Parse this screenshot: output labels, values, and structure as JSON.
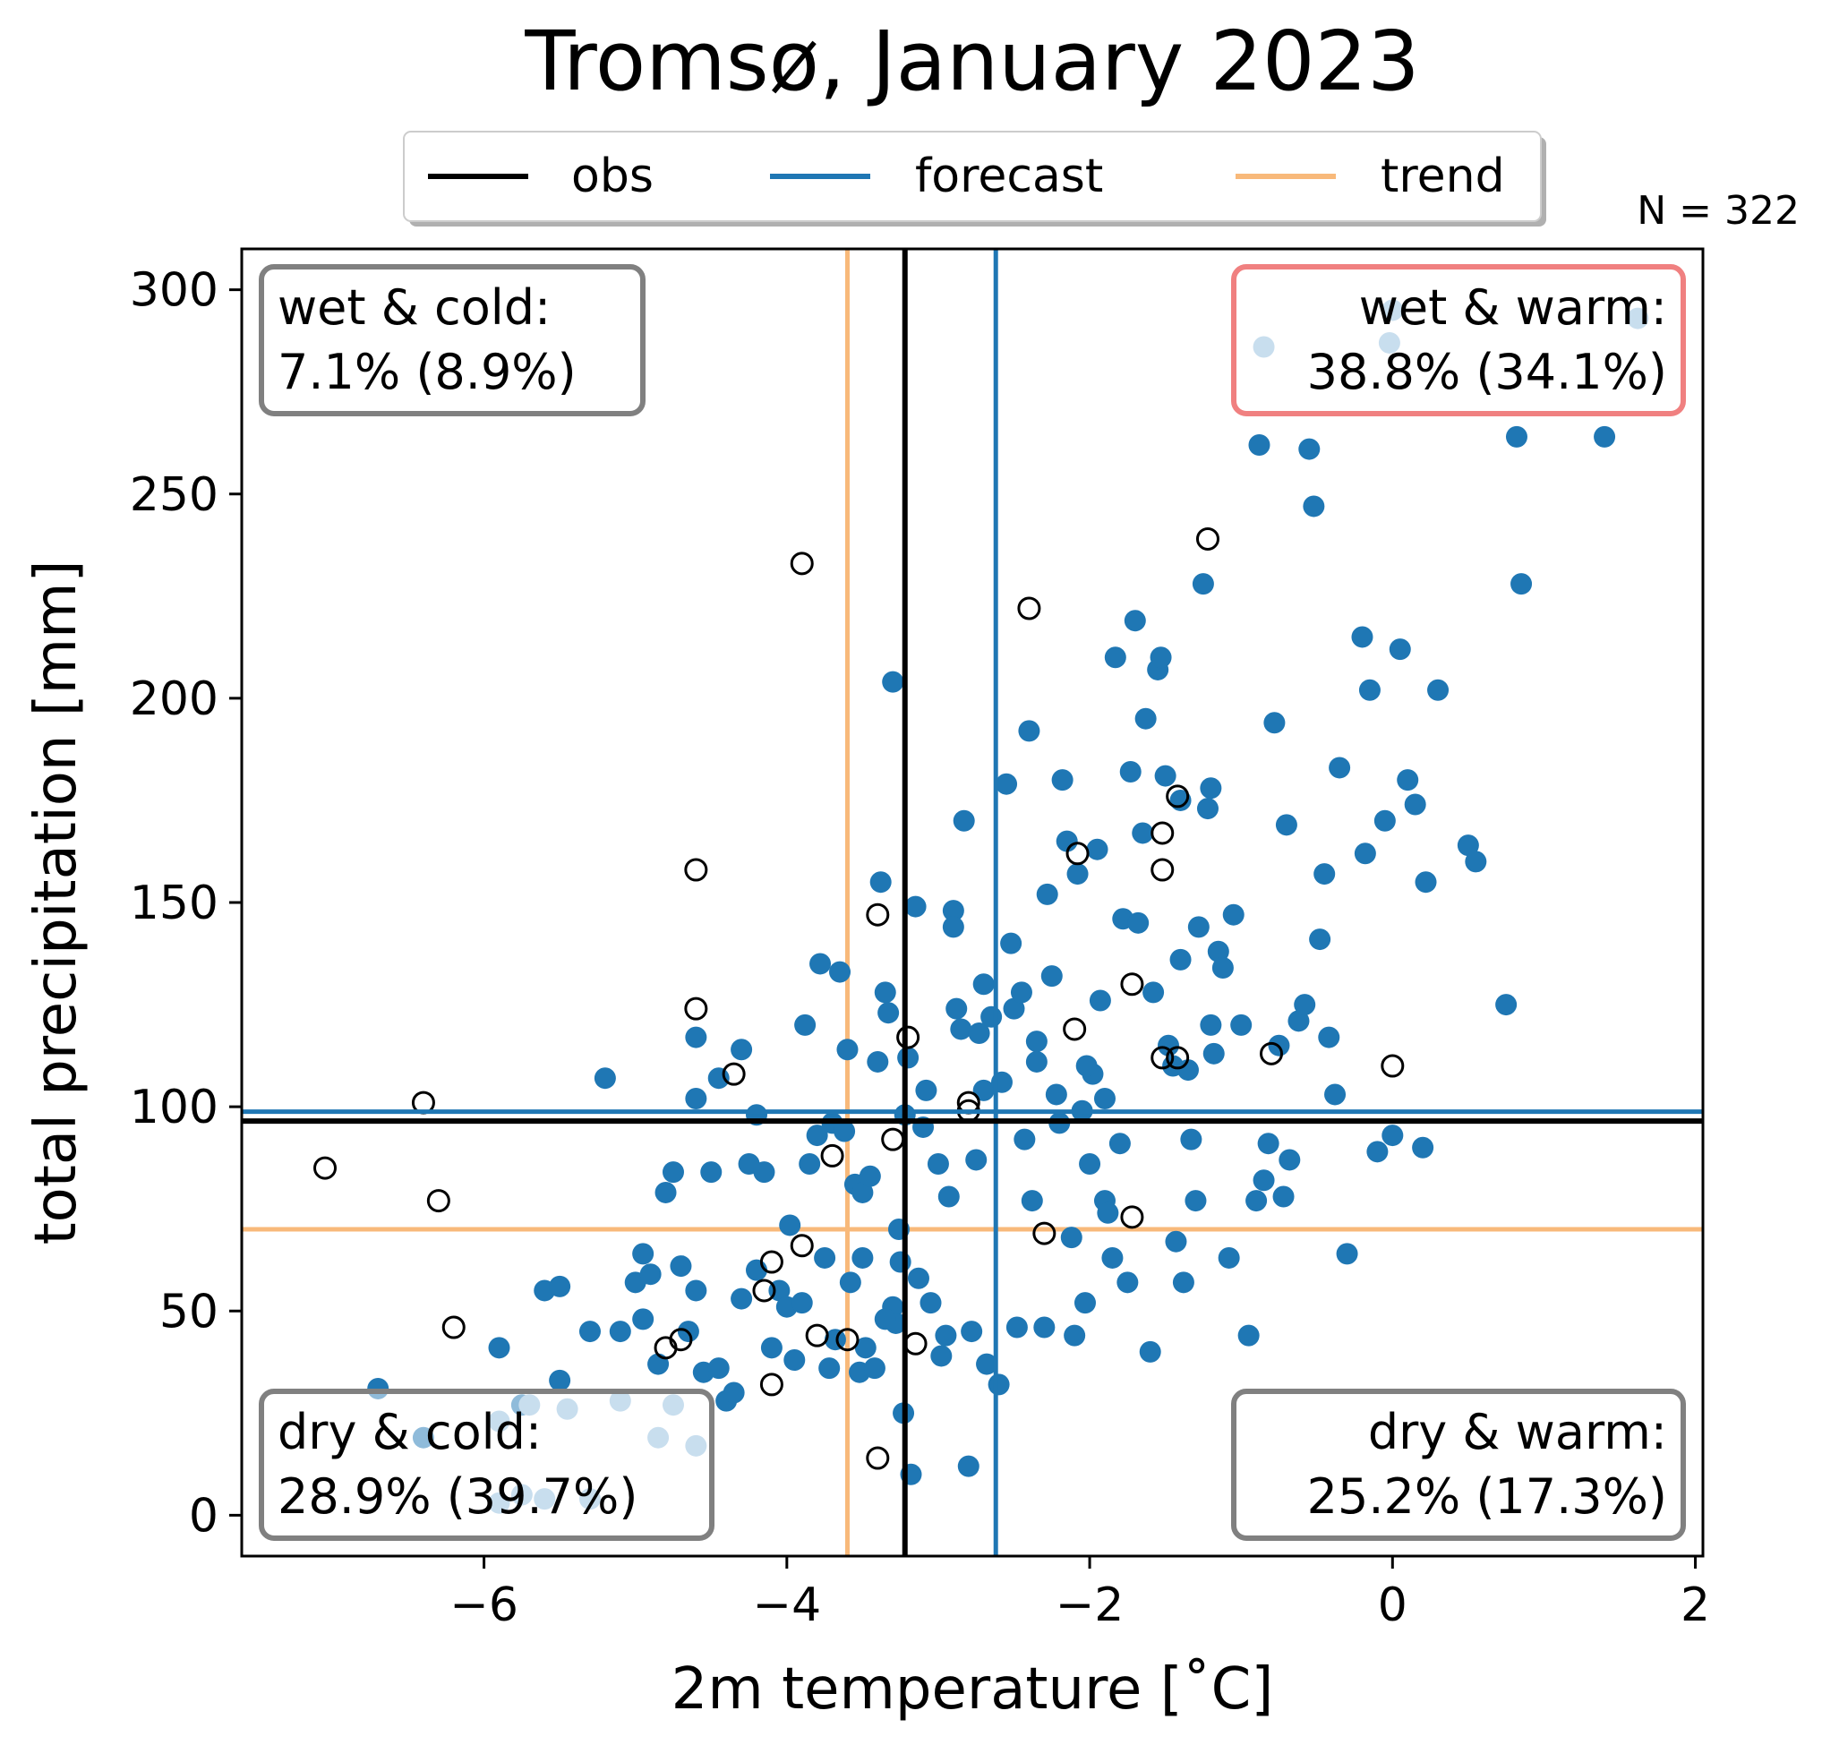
{
  "chart_data": {
    "type": "scatter",
    "title": "Tromsø, January 2023",
    "xlabel": "2m temperature [˚C]",
    "ylabel": "total precipitation [mm]",
    "xlim": [
      -7.6,
      2.05
    ],
    "ylim": [
      -10,
      310
    ],
    "xticks": [
      -6,
      -4,
      -2,
      0,
      2
    ],
    "xtick_labels": [
      "−6",
      "−4",
      "−2",
      "0",
      "2"
    ],
    "yticks": [
      0,
      50,
      100,
      150,
      200,
      250,
      300
    ],
    "ytick_labels": [
      "0",
      "50",
      "100",
      "150",
      "200",
      "250",
      "300"
    ],
    "grid": false,
    "n_label": "N = 322",
    "legend": {
      "placement": "top-center",
      "entries": [
        {
          "label": "obs",
          "color": "#000000"
        },
        {
          "label": "forecast",
          "color": "#1f77b4"
        },
        {
          "label": "trend",
          "color": "#f8b97a"
        }
      ]
    },
    "reference_lines": {
      "obs": {
        "x": -3.22,
        "y": 96.5,
        "color": "#000000"
      },
      "forecast": {
        "x": -2.62,
        "y": 98.8,
        "color": "#1f77b4"
      },
      "trend": {
        "x": -3.6,
        "y": 70,
        "color": "#f8b97a"
      }
    },
    "quadrants": [
      {
        "id": "wet-cold",
        "line1": "wet & cold:",
        "line2": "7.1% (8.9%)",
        "position": "top-left",
        "edge": "#808080"
      },
      {
        "id": "wet-warm",
        "line1": "wet & warm:",
        "line2": "38.8% (34.1%)",
        "position": "top-right",
        "edge": "#f08080"
      },
      {
        "id": "dry-cold",
        "line1": "dry & cold:",
        "line2": "28.9% (39.7%)",
        "position": "bottom-left",
        "edge": "#808080"
      },
      {
        "id": "dry-warm",
        "line1": "dry & warm:",
        "line2": "25.2% (17.3%)",
        "position": "bottom-right",
        "edge": "#808080"
      }
    ],
    "series": [
      {
        "name": "forecast",
        "marker": "filled-circle",
        "color": "#1f77b4",
        "points": [
          [
            -6.7,
            31
          ],
          [
            -6.4,
            19
          ],
          [
            -5.9,
            41
          ],
          [
            -5.6,
            55
          ],
          [
            -5.5,
            56
          ],
          [
            -5.3,
            45
          ],
          [
            -5.2,
            107
          ],
          [
            -5.1,
            45
          ],
          [
            -5.0,
            57
          ],
          [
            -4.95,
            48
          ],
          [
            -4.9,
            59
          ],
          [
            -4.85,
            37
          ],
          [
            -4.8,
            79
          ],
          [
            -4.75,
            84
          ],
          [
            -4.7,
            61
          ],
          [
            -4.65,
            45
          ],
          [
            -4.6,
            55
          ],
          [
            -4.55,
            35
          ],
          [
            -4.5,
            84
          ],
          [
            -4.45,
            36
          ],
          [
            -4.4,
            28
          ],
          [
            -4.35,
            30
          ],
          [
            -4.3,
            53
          ],
          [
            -4.25,
            86
          ],
          [
            -4.2,
            60
          ],
          [
            -4.15,
            84
          ],
          [
            -4.1,
            41
          ],
          [
            -4.05,
            55
          ],
          [
            -4.0,
            51
          ],
          [
            -3.98,
            71
          ],
          [
            -3.95,
            38
          ],
          [
            -3.9,
            52
          ],
          [
            -3.88,
            120
          ],
          [
            -3.85,
            86
          ],
          [
            -3.8,
            93
          ],
          [
            -3.78,
            135
          ],
          [
            -3.75,
            63
          ],
          [
            -3.72,
            36
          ],
          [
            -3.7,
            96
          ],
          [
            -3.68,
            43
          ],
          [
            -3.65,
            133
          ],
          [
            -3.62,
            94
          ],
          [
            -3.6,
            114
          ],
          [
            -3.58,
            57
          ],
          [
            -3.55,
            81
          ],
          [
            -3.52,
            35
          ],
          [
            -3.5,
            79
          ],
          [
            -3.48,
            41
          ],
          [
            -3.45,
            83
          ],
          [
            -3.42,
            36
          ],
          [
            -3.4,
            111
          ],
          [
            -3.38,
            155
          ],
          [
            -3.35,
            128
          ],
          [
            -3.33,
            123
          ],
          [
            -3.3,
            51
          ],
          [
            -3.28,
            47
          ],
          [
            -3.26,
            70
          ],
          [
            -3.25,
            62
          ],
          [
            -3.23,
            25
          ],
          [
            -3.22,
            98
          ],
          [
            -3.2,
            112
          ],
          [
            -3.18,
            10
          ],
          [
            -3.15,
            149
          ],
          [
            -3.13,
            58
          ],
          [
            -3.1,
            95
          ],
          [
            -3.08,
            104
          ],
          [
            -3.05,
            52
          ],
          [
            -3.0,
            86
          ],
          [
            -2.98,
            39
          ],
          [
            -2.95,
            44
          ],
          [
            -2.93,
            78
          ],
          [
            -2.9,
            148
          ],
          [
            -2.88,
            124
          ],
          [
            -2.85,
            119
          ],
          [
            -2.83,
            170
          ],
          [
            -2.8,
            12
          ],
          [
            -2.78,
            45
          ],
          [
            -2.75,
            87
          ],
          [
            -2.73,
            118
          ],
          [
            -2.7,
            104
          ],
          [
            -2.68,
            37
          ],
          [
            -2.65,
            122
          ],
          [
            -2.6,
            32
          ],
          [
            -2.58,
            106
          ],
          [
            -2.55,
            179
          ],
          [
            -2.52,
            140
          ],
          [
            -2.5,
            124
          ],
          [
            -2.48,
            46
          ],
          [
            -2.45,
            128
          ],
          [
            -2.43,
            92
          ],
          [
            -2.4,
            192
          ],
          [
            -2.38,
            77
          ],
          [
            -2.35,
            111
          ],
          [
            -2.3,
            46
          ],
          [
            -2.28,
            152
          ],
          [
            -2.25,
            132
          ],
          [
            -2.22,
            103
          ],
          [
            -2.2,
            96
          ],
          [
            -2.18,
            180
          ],
          [
            -2.15,
            165
          ],
          [
            -2.12,
            68
          ],
          [
            -2.1,
            44
          ],
          [
            -2.08,
            157
          ],
          [
            -2.05,
            99
          ],
          [
            -2.03,
            52
          ],
          [
            -2.0,
            86
          ],
          [
            -1.98,
            108
          ],
          [
            -1.95,
            163
          ],
          [
            -1.93,
            126
          ],
          [
            -1.9,
            77
          ],
          [
            -1.88,
            74
          ],
          [
            -1.85,
            63
          ],
          [
            -1.83,
            210
          ],
          [
            -1.8,
            91
          ],
          [
            -1.78,
            146
          ],
          [
            -1.75,
            57
          ],
          [
            -1.73,
            182
          ],
          [
            -1.7,
            219
          ],
          [
            -1.68,
            145
          ],
          [
            -1.65,
            167
          ],
          [
            -1.63,
            195
          ],
          [
            -1.6,
            40
          ],
          [
            -1.58,
            128
          ],
          [
            -1.55,
            207
          ],
          [
            -1.53,
            210
          ],
          [
            -1.5,
            181
          ],
          [
            -1.48,
            115
          ],
          [
            -1.45,
            110
          ],
          [
            -1.43,
            67
          ],
          [
            -1.4,
            136
          ],
          [
            -1.38,
            57
          ],
          [
            -1.35,
            109
          ],
          [
            -1.33,
            92
          ],
          [
            -1.3,
            77
          ],
          [
            -1.28,
            144
          ],
          [
            -1.25,
            228
          ],
          [
            -1.22,
            173
          ],
          [
            -1.2,
            120
          ],
          [
            -1.18,
            113
          ],
          [
            -1.15,
            138
          ],
          [
            -1.12,
            134
          ],
          [
            -1.08,
            63
          ],
          [
            -1.05,
            147
          ],
          [
            -1.0,
            120
          ],
          [
            -0.95,
            44
          ],
          [
            -0.9,
            77
          ],
          [
            -0.88,
            262
          ],
          [
            -0.85,
            82
          ],
          [
            -0.82,
            91
          ],
          [
            -0.78,
            194
          ],
          [
            -0.75,
            115
          ],
          [
            -0.72,
            78
          ],
          [
            -0.7,
            169
          ],
          [
            -0.68,
            87
          ],
          [
            -0.62,
            121
          ],
          [
            -0.58,
            125
          ],
          [
            -0.55,
            261
          ],
          [
            -0.52,
            247
          ],
          [
            -0.48,
            141
          ],
          [
            -0.45,
            157
          ],
          [
            -0.42,
            117
          ],
          [
            -0.38,
            103
          ],
          [
            -0.35,
            183
          ],
          [
            -0.3,
            64
          ],
          [
            -0.2,
            215
          ],
          [
            -0.18,
            162
          ],
          [
            -0.15,
            202
          ],
          [
            -0.1,
            89
          ],
          [
            -0.05,
            170
          ],
          [
            0.0,
            93
          ],
          [
            0.05,
            212
          ],
          [
            0.1,
            180
          ],
          [
            0.15,
            174
          ],
          [
            0.2,
            90
          ],
          [
            0.22,
            155
          ],
          [
            0.3,
            202
          ],
          [
            0.5,
            164
          ],
          [
            0.55,
            160
          ],
          [
            0.75,
            125
          ],
          [
            0.82,
            264
          ],
          [
            0.85,
            228
          ],
          [
            1.4,
            264
          ],
          [
            -3.3,
            204
          ],
          [
            -2.9,
            144
          ],
          [
            -3.5,
            63
          ],
          [
            -4.6,
            117
          ],
          [
            -4.95,
            64
          ],
          [
            -5.5,
            33
          ],
          [
            -5.75,
            27
          ],
          [
            -4.6,
            102
          ],
          [
            -4.2,
            98
          ],
          [
            -3.35,
            48
          ],
          [
            -2.7,
            130
          ],
          [
            -2.35,
            116
          ],
          [
            -1.4,
            175
          ],
          [
            -1.2,
            178
          ],
          [
            -1.9,
            102
          ],
          [
            -2.02,
            110
          ],
          [
            -4.45,
            107
          ],
          [
            -4.3,
            114
          ]
        ]
      },
      {
        "name": "trend",
        "marker": "light-filled-circle",
        "color": "#91bcdd",
        "points": [
          [
            -5.9,
            23
          ],
          [
            -5.9,
            3
          ],
          [
            -5.75,
            5
          ],
          [
            -5.7,
            27
          ],
          [
            -5.6,
            4
          ],
          [
            -5.45,
            26
          ],
          [
            -5.3,
            4
          ],
          [
            -5.1,
            28
          ],
          [
            -4.85,
            19
          ],
          [
            -4.75,
            27
          ],
          [
            -4.6,
            17
          ],
          [
            -0.85,
            286
          ],
          [
            -0.02,
            287
          ],
          [
            0.0,
            295
          ],
          [
            1.62,
            293
          ]
        ]
      },
      {
        "name": "obs",
        "marker": "open-circle",
        "color": "#000000",
        "points": [
          [
            -7.05,
            85
          ],
          [
            -6.4,
            101
          ],
          [
            -6.3,
            77
          ],
          [
            -6.2,
            46
          ],
          [
            -4.8,
            41
          ],
          [
            -4.7,
            43
          ],
          [
            -4.6,
            158
          ],
          [
            -4.6,
            124
          ],
          [
            -4.35,
            108
          ],
          [
            -4.15,
            55
          ],
          [
            -4.1,
            62
          ],
          [
            -4.1,
            32
          ],
          [
            -3.9,
            233
          ],
          [
            -3.9,
            66
          ],
          [
            -3.8,
            44
          ],
          [
            -3.7,
            88
          ],
          [
            -3.6,
            43
          ],
          [
            -3.4,
            147
          ],
          [
            -3.4,
            14
          ],
          [
            -3.3,
            92
          ],
          [
            -3.2,
            117
          ],
          [
            -3.15,
            42
          ],
          [
            -2.8,
            101
          ],
          [
            -2.8,
            99
          ],
          [
            -2.4,
            222
          ],
          [
            -2.3,
            69
          ],
          [
            -2.1,
            119
          ],
          [
            -2.08,
            162
          ],
          [
            -1.72,
            130
          ],
          [
            -1.72,
            73
          ],
          [
            -1.52,
            167
          ],
          [
            -1.52,
            158
          ],
          [
            -1.52,
            112
          ],
          [
            -1.42,
            176
          ],
          [
            -1.42,
            112
          ],
          [
            -1.22,
            239
          ],
          [
            -0.8,
            113
          ],
          [
            0.0,
            110
          ]
        ]
      }
    ]
  }
}
